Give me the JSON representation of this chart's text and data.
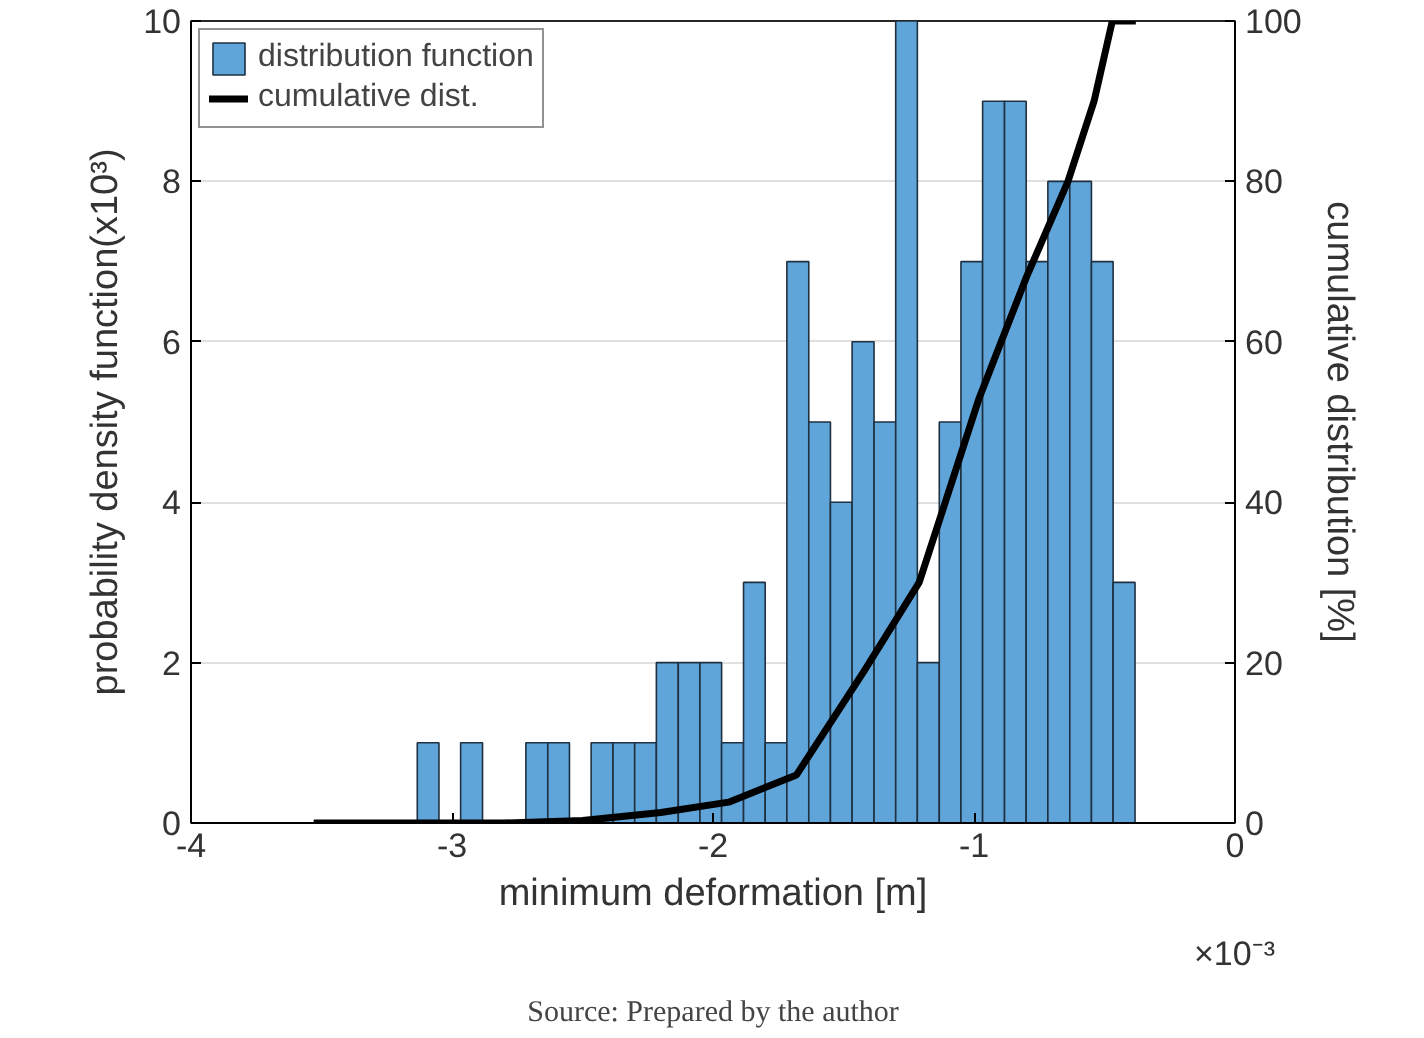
{
  "chart_data": {
    "type": "histogram",
    "xlabel": "minimum deformation [m]",
    "ylabel": "probability density function(x10³)",
    "y2label": "cumulative distribution [%]",
    "annotations": [
      "×10⁻³",
      "Source: Prepared by the author"
    ],
    "bins": [
      -3.133,
      -3.05,
      -2.967,
      -2.883,
      -2.8,
      -2.717,
      -2.633,
      -2.55,
      -2.467,
      -2.383,
      -2.3,
      -2.217,
      -2.133,
      -2.05,
      -1.967,
      -1.883,
      -1.8,
      -1.717,
      -1.633,
      -1.55,
      -1.467,
      -1.383,
      -1.3,
      -1.217,
      -1.133,
      -1.05,
      -0.967,
      -0.883,
      -0.8,
      -0.717,
      -0.633,
      -0.55,
      -0.467,
      -0.383
    ],
    "series": [
      {
        "name": "distribution function",
        "color": "#5fa5da",
        "values": [
          1,
          0,
          1,
          0,
          0,
          1,
          1,
          0,
          1,
          1,
          1,
          2,
          2,
          2,
          1,
          3,
          1,
          7,
          5,
          4,
          6,
          5,
          10,
          2,
          5,
          7,
          9,
          9,
          7,
          8,
          8,
          7,
          3
        ]
      },
      {
        "name": "cumulative dist.",
        "type": "line",
        "axis": "y2",
        "color": "#000000",
        "x": [
          -3.53,
          -2.8,
          -2.5,
          -2.2,
          -1.94,
          -1.68,
          -1.42,
          -1.21,
          -0.98,
          -0.8,
          -0.64,
          -0.54,
          -0.47,
          -0.38
        ],
        "values": [
          0,
          0,
          0.3,
          1.3,
          2.6,
          6,
          19,
          30,
          53,
          68,
          80,
          90,
          100,
          100
        ]
      }
    ],
    "xlim": [
      -4,
      0
    ],
    "xticks": [
      -4,
      -3,
      -2,
      -1,
      0
    ],
    "ylim": [
      0,
      10
    ],
    "yticks": [
      0,
      2,
      4,
      6,
      8,
      10
    ],
    "y2lim": [
      0,
      100
    ],
    "y2ticks": [
      0,
      20,
      40,
      60,
      80,
      100
    ],
    "grid": "y",
    "legend": "top left"
  }
}
